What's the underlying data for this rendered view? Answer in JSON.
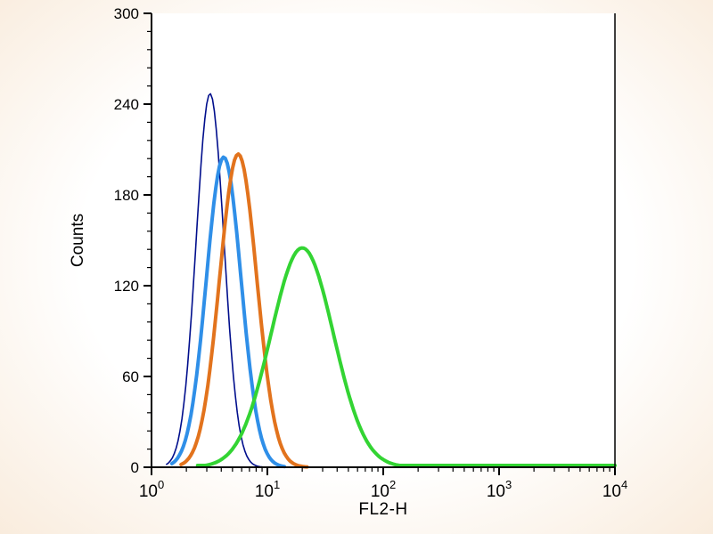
{
  "page": {
    "background_tint": "#f9ecdd",
    "plot_background": "#ffffff",
    "axis_color": "#000000"
  },
  "chart_data": {
    "type": "line",
    "histogram_overlay": true,
    "title": "",
    "xlabel": "FL2-H",
    "ylabel": "Counts",
    "x_scale": "log10",
    "xlim": [
      1,
      10000
    ],
    "ylim": [
      0,
      300
    ],
    "y_ticks": [
      0,
      60,
      120,
      180,
      240,
      300
    ],
    "y_minor_step": 12,
    "x_tick_exponents": [
      0,
      1,
      2,
      3,
      4
    ],
    "x_tick_base": "10",
    "grid": false,
    "legend": "none",
    "series": [
      {
        "name": "navy-histogram",
        "color": "#000e8c",
        "stroke_width": 1.6,
        "peak_x": 3.2,
        "peak_y": 247,
        "sigma_log10": 0.12,
        "x_start": 1.35,
        "x_end": 9,
        "baseline_level": 0,
        "points": [
          [
            1.6,
            10
          ],
          [
            2.0,
            57
          ],
          [
            2.24,
            107
          ],
          [
            2.5,
            168
          ],
          [
            2.8,
            221
          ],
          [
            3.2,
            247
          ],
          [
            3.5,
            228
          ],
          [
            4.0,
            178
          ],
          [
            4.5,
            116
          ],
          [
            5.0,
            64
          ],
          [
            6.3,
            12
          ],
          [
            7.9,
            1
          ]
        ]
      },
      {
        "name": "blue-histogram",
        "color": "#2f8fe8",
        "stroke_width": 4,
        "peak_x": 4.2,
        "peak_y": 205,
        "sigma_log10": 0.15,
        "x_start": 1.5,
        "x_end": 14,
        "baseline_level": 0,
        "points": [
          [
            2.0,
            20
          ],
          [
            2.5,
            67
          ],
          [
            3.0,
            128
          ],
          [
            3.5,
            178
          ],
          [
            4.2,
            205
          ],
          [
            5.0,
            180
          ],
          [
            6.0,
            120
          ],
          [
            7.0,
            69
          ],
          [
            8.0,
            36
          ],
          [
            10,
            9
          ],
          [
            12,
            2
          ]
        ]
      },
      {
        "name": "orange-histogram",
        "color": "#e2731d",
        "stroke_width": 4,
        "peak_x": 5.6,
        "peak_y": 207,
        "sigma_log10": 0.16,
        "x_start": 1.8,
        "x_end": 22,
        "baseline_level": 0,
        "points": [
          [
            2.5,
            19
          ],
          [
            3.0,
            49
          ],
          [
            3.5,
            92
          ],
          [
            4.0,
            137
          ],
          [
            5.0,
            198
          ],
          [
            5.6,
            207
          ],
          [
            7.0,
            172
          ],
          [
            8.0,
            129
          ],
          [
            10,
            60
          ],
          [
            12,
            24
          ],
          [
            15,
            6
          ],
          [
            20,
            1
          ]
        ]
      },
      {
        "name": "green-histogram",
        "color": "#33d433",
        "stroke_width": 4,
        "peak_x": 20,
        "peak_y": 145,
        "sigma_log10": 0.27,
        "x_start": 2.5,
        "x_end": 10000,
        "baseline_level": 1.2,
        "points": [
          [
            6,
            22
          ],
          [
            8,
            49
          ],
          [
            10,
            78
          ],
          [
            13,
            114
          ],
          [
            16,
            136
          ],
          [
            20,
            145
          ],
          [
            25,
            136
          ],
          [
            32,
            109
          ],
          [
            40,
            78
          ],
          [
            50,
            49
          ],
          [
            63,
            26
          ],
          [
            80,
            12
          ],
          [
            100,
            5
          ],
          [
            126,
            2
          ],
          [
            200,
            1
          ],
          [
            1000,
            1
          ],
          [
            10000,
            1
          ]
        ]
      }
    ]
  }
}
